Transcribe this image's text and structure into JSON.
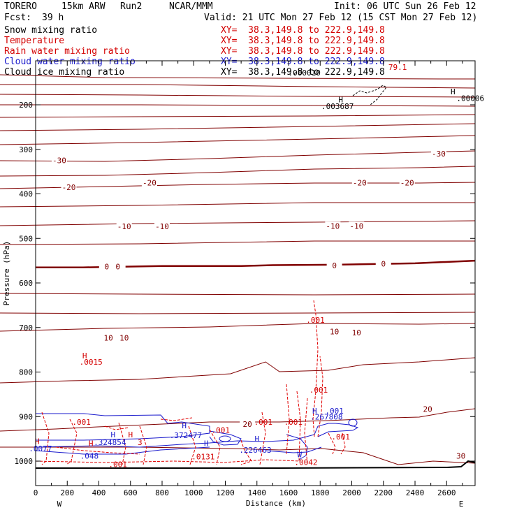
{
  "header": {
    "model": "TORERO",
    "resolution": "15km ARW",
    "run": "Run2",
    "org": "NCAR/MMM",
    "init": "Init: 06 UTC Sun 26 Feb 12",
    "fcst_label": "Fcst:",
    "fcst_value": "39 h",
    "valid": "Valid: 21 UTC Mon 27 Feb 12 (15 CST Mon 27 Feb 12)"
  },
  "fields": [
    {
      "name": "Snow mixing ratio",
      "xy": "XY=  38.3,149.8 to 222.9,149.8",
      "color": "#000000"
    },
    {
      "name": "Temperature",
      "xy": "XY=  38.3,149.8 to 222.9,149.8",
      "color": "#d40000"
    },
    {
      "name": "Rain water mixing ratio",
      "xy": "XY=  38.3,149.8 to 222.9,149.8",
      "color": "#d40000"
    },
    {
      "name": "Cloud water mixing ratio",
      "xy": "XY=  38.3,149.8 to 222.9,149.8",
      "color": "#1a1acc"
    },
    {
      "name": "Cloud ice mixing ratio",
      "xy": "XY=  38.3,149.8 to 222.9,149.8",
      "color": "#000000"
    }
  ],
  "chart_data": {
    "type": "contour cross-section",
    "xlabel": "Distance (km)",
    "ylabel": "Pressure (hPa)",
    "xlim": [
      0,
      2780
    ],
    "ylim": [
      1050,
      100
    ],
    "x_ticks": [
      0,
      200,
      400,
      600,
      800,
      1000,
      1200,
      1400,
      1600,
      1800,
      2000,
      2200,
      2400,
      2600
    ],
    "y_ticks": [
      200,
      300,
      400,
      500,
      600,
      700,
      800,
      900,
      1000
    ],
    "x_end_labels": [
      "W",
      "E"
    ],
    "colors": {
      "temperature": "#800000",
      "rain": "#e00000",
      "cloud_water": "#1a1acc",
      "snow": "#000000",
      "label_red": "#d40000"
    },
    "temperature_contours": [
      {
        "value": 0,
        "emphasis": true,
        "points": [
          [
            0,
            565
          ],
          [
            300,
            565
          ],
          [
            800,
            562
          ],
          [
            1300,
            562
          ],
          [
            1500,
            560
          ],
          [
            1900,
            559
          ],
          [
            2400,
            556
          ],
          [
            2780,
            550
          ]
        ]
      }
    ],
    "temperature_labels": [
      {
        "text": "-30",
        "x": 150,
        "p": 325
      },
      {
        "text": "-30",
        "x": 2550,
        "p": 310
      },
      {
        "text": "-20",
        "x": 210,
        "p": 385
      },
      {
        "text": "-20",
        "x": 720,
        "p": 375
      },
      {
        "text": "-20",
        "x": 2050,
        "p": 375
      },
      {
        "text": "-20",
        "x": 2350,
        "p": 375
      },
      {
        "text": "-10",
        "x": 560,
        "p": 473
      },
      {
        "text": "-10",
        "x": 800,
        "p": 473
      },
      {
        "text": "-10",
        "x": 1880,
        "p": 472
      },
      {
        "text": "-10",
        "x": 2030,
        "p": 472
      },
      {
        "text": "0",
        "x": 450,
        "p": 563
      },
      {
        "text": "0",
        "x": 520,
        "p": 563
      },
      {
        "text": "0",
        "x": 1890,
        "p": 561
      },
      {
        "text": "0",
        "x": 2200,
        "p": 557
      },
      {
        "text": "10",
        "x": 460,
        "p": 723
      },
      {
        "text": "10",
        "x": 560,
        "p": 723
      },
      {
        "text": "10",
        "x": 1890,
        "p": 709
      },
      {
        "text": "10",
        "x": 2030,
        "p": 711
      },
      {
        "text": "20",
        "x": 1340,
        "p": 917
      },
      {
        "text": "20",
        "x": 2480,
        "p": 883
      },
      {
        "text": "30",
        "x": 2690,
        "p": 988
      }
    ],
    "point_labels": [
      {
        "text": "H",
        "x": 310,
        "p": 763,
        "color": "#d40000"
      },
      {
        "text": ".0015",
        "x": 350,
        "p": 777,
        "color": "#d40000"
      },
      {
        "text": ".001",
        "x": 1770,
        "p": 683,
        "color": "#d40000"
      },
      {
        "text": ".001",
        "x": 1790,
        "p": 840,
        "color": "#d40000"
      },
      {
        "text": ".001",
        "x": 1890,
        "p": 887,
        "color": "#1a1acc"
      },
      {
        "text": "H",
        "x": 1765,
        "p": 887,
        "color": "#1a1acc"
      },
      {
        "text": ".267808",
        "x": 1840,
        "p": 900,
        "color": "#1a1acc"
      },
      {
        "text": ".001",
        "x": 290,
        "p": 912,
        "color": "#d40000"
      },
      {
        "text": ".001",
        "x": 1440,
        "p": 912,
        "color": "#d40000"
      },
      {
        "text": ".001",
        "x": 1630,
        "p": 912,
        "color": "#d40000"
      },
      {
        "text": ".001",
        "x": 1930,
        "p": 945,
        "color": "#d40000"
      },
      {
        "text": "H",
        "x": 490,
        "p": 940,
        "color": "#1a1acc"
      },
      {
        "text": "H",
        "x": 600,
        "p": 940,
        "color": "#d40000"
      },
      {
        "text": "H",
        "x": 940,
        "p": 920,
        "color": "#1a1acc"
      },
      {
        "text": ".372477",
        "x": 950,
        "p": 942,
        "color": "#1a1acc"
      },
      {
        "text": ".001",
        "x": 1170,
        "p": 930,
        "color": "#d40000"
      },
      {
        "text": ".324854",
        "x": 470,
        "p": 958,
        "color": "#1a1acc"
      },
      {
        "text": "3",
        "x": 660,
        "p": 958,
        "color": "#d40000"
      },
      {
        "text": "H",
        "x": 10,
        "p": 955,
        "color": "#d40000"
      },
      {
        "text": "H",
        "x": 350,
        "p": 960,
        "color": "#d40000"
      },
      {
        "text": "H",
        "x": 1080,
        "p": 960,
        "color": "#1a1acc"
      },
      {
        "text": "H",
        "x": 1400,
        "p": 950,
        "color": "#1a1acc"
      },
      {
        "text": ".0077",
        "x": 30,
        "p": 972,
        "color": "#1a1acc"
      },
      {
        "text": ".226463",
        "x": 1390,
        "p": 975,
        "color": "#1a1acc"
      },
      {
        "text": ".048",
        "x": 340,
        "p": 988,
        "color": "#1a1acc"
      },
      {
        "text": ".0131",
        "x": 1060,
        "p": 990,
        "color": "#d40000"
      },
      {
        "text": "W",
        "x": 1670,
        "p": 985,
        "color": "#1a1acc"
      },
      {
        "text": ".001",
        "x": 520,
        "p": 1007,
        "color": "#d40000"
      },
      {
        "text": ".0042",
        "x": 1710,
        "p": 1002,
        "color": "#d40000"
      },
      {
        "text": "H",
        "x": 1930,
        "p": 188,
        "color": "#000000"
      },
      {
        "text": ".003687",
        "x": 1910,
        "p": 203,
        "color": "#000000"
      },
      {
        "text": "H",
        "x": 2640,
        "p": 170,
        "color": "#000000"
      },
      {
        "text": ".00006",
        "x": 2750,
        "p": 185,
        "color": "#000000"
      },
      {
        "text": ".000010",
        "x": 1700,
        "p": 128,
        "color": "#000000"
      },
      {
        "text": "79.1",
        "x": 2290,
        "p": 115,
        "color": "#d40000"
      }
    ]
  }
}
